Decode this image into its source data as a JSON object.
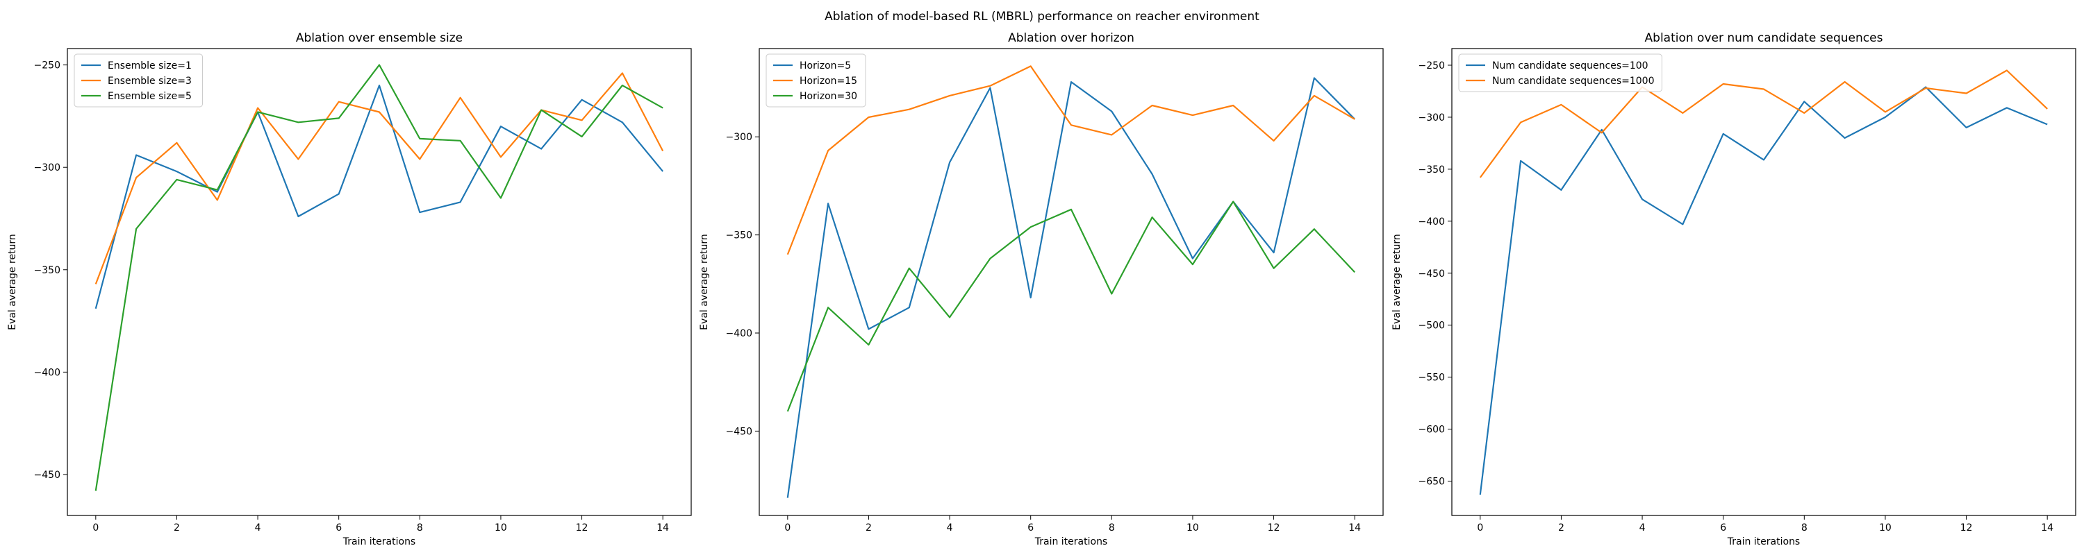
{
  "suptitle": "Ablation of model-based RL (MBRL) performance on reacher environment",
  "colors": {
    "c0": "#1f77b4",
    "c1": "#ff7f0e",
    "c2": "#2ca02c"
  },
  "chart_data": [
    {
      "type": "line",
      "title": "Ablation over ensemble size",
      "xlabel": "Train iterations",
      "ylabel": "Eval average return",
      "xlim": [
        -0.7,
        14.7
      ],
      "ylim": [
        -470,
        -242
      ],
      "xticks": [
        0,
        2,
        4,
        6,
        8,
        10,
        12,
        14
      ],
      "yticks": [
        -450,
        -400,
        -350,
        -300,
        -250
      ],
      "legend": "top-left",
      "x": [
        0,
        1,
        2,
        3,
        4,
        5,
        6,
        7,
        8,
        9,
        10,
        11,
        12,
        13,
        14
      ],
      "series": [
        {
          "name": "Ensemble size=1",
          "color": "#1f77b4",
          "values": [
            -369,
            -294,
            -302,
            -312,
            -273,
            -324,
            -313,
            -260,
            -322,
            -317,
            -280,
            -291,
            -267,
            -278,
            -302
          ]
        },
        {
          "name": "Ensemble size=3",
          "color": "#ff7f0e",
          "values": [
            -357,
            -305,
            -288,
            -316,
            -271,
            -296,
            -268,
            -273,
            -296,
            -266,
            -295,
            -272,
            -277,
            -254,
            -292
          ]
        },
        {
          "name": "Ensemble size=5",
          "color": "#2ca02c",
          "values": [
            -458,
            -330,
            -306,
            -311,
            -273,
            -278,
            -276,
            -250,
            -286,
            -287,
            -315,
            -272,
            -285,
            -260,
            -271
          ]
        }
      ]
    },
    {
      "type": "line",
      "title": "Ablation over horizon",
      "xlabel": "Train iterations",
      "ylabel": "Eval average return",
      "xlim": [
        -0.7,
        14.7
      ],
      "ylim": [
        -493,
        -255
      ],
      "xticks": [
        0,
        2,
        4,
        6,
        8,
        10,
        12,
        14
      ],
      "yticks": [
        -450,
        -400,
        -350,
        -300
      ],
      "legend": "top-left",
      "x": [
        0,
        1,
        2,
        3,
        4,
        5,
        6,
        7,
        8,
        9,
        10,
        11,
        12,
        13,
        14
      ],
      "series": [
        {
          "name": "Horizon=5",
          "color": "#1f77b4",
          "values": [
            -484,
            -334,
            -398,
            -387,
            -313,
            -275,
            -382,
            -272,
            -287,
            -319,
            -362,
            -333,
            -359,
            -270,
            -291
          ]
        },
        {
          "name": "Horizon=15",
          "color": "#ff7f0e",
          "values": [
            -360,
            -307,
            -290,
            -286,
            -279,
            -274,
            -264,
            -294,
            -299,
            -284,
            -289,
            -284,
            -302,
            -279,
            -291
          ]
        },
        {
          "name": "Horizon=30",
          "color": "#2ca02c",
          "values": [
            -440,
            -387,
            -406,
            -367,
            -392,
            -362,
            -346,
            -337,
            -380,
            -341,
            -365,
            -333,
            -367,
            -347,
            -369
          ]
        }
      ]
    },
    {
      "type": "line",
      "title": "Ablation over num candidate sequences",
      "xlabel": "Train iterations",
      "ylabel": "Eval average return",
      "xlim": [
        -0.7,
        14.7
      ],
      "ylim": [
        -683,
        -234
      ],
      "xticks": [
        0,
        2,
        4,
        6,
        8,
        10,
        12,
        14
      ],
      "yticks": [
        -650,
        -600,
        -550,
        -500,
        -450,
        -400,
        -350,
        -300,
        -250
      ],
      "legend": "top-left",
      "x": [
        0,
        1,
        2,
        3,
        4,
        5,
        6,
        7,
        8,
        9,
        10,
        11,
        12,
        13,
        14
      ],
      "series": [
        {
          "name": "Num candidate sequences=100",
          "color": "#1f77b4",
          "values": [
            -663,
            -342,
            -370,
            -312,
            -379,
            -403,
            -316,
            -341,
            -285,
            -320,
            -300,
            -271,
            -310,
            -291,
            -307
          ]
        },
        {
          "name": "Num candidate sequences=1000",
          "color": "#ff7f0e",
          "values": [
            -358,
            -305,
            -288,
            -315,
            -271,
            -296,
            -268,
            -273,
            -296,
            -266,
            -295,
            -272,
            -277,
            -255,
            -292
          ]
        }
      ]
    }
  ]
}
